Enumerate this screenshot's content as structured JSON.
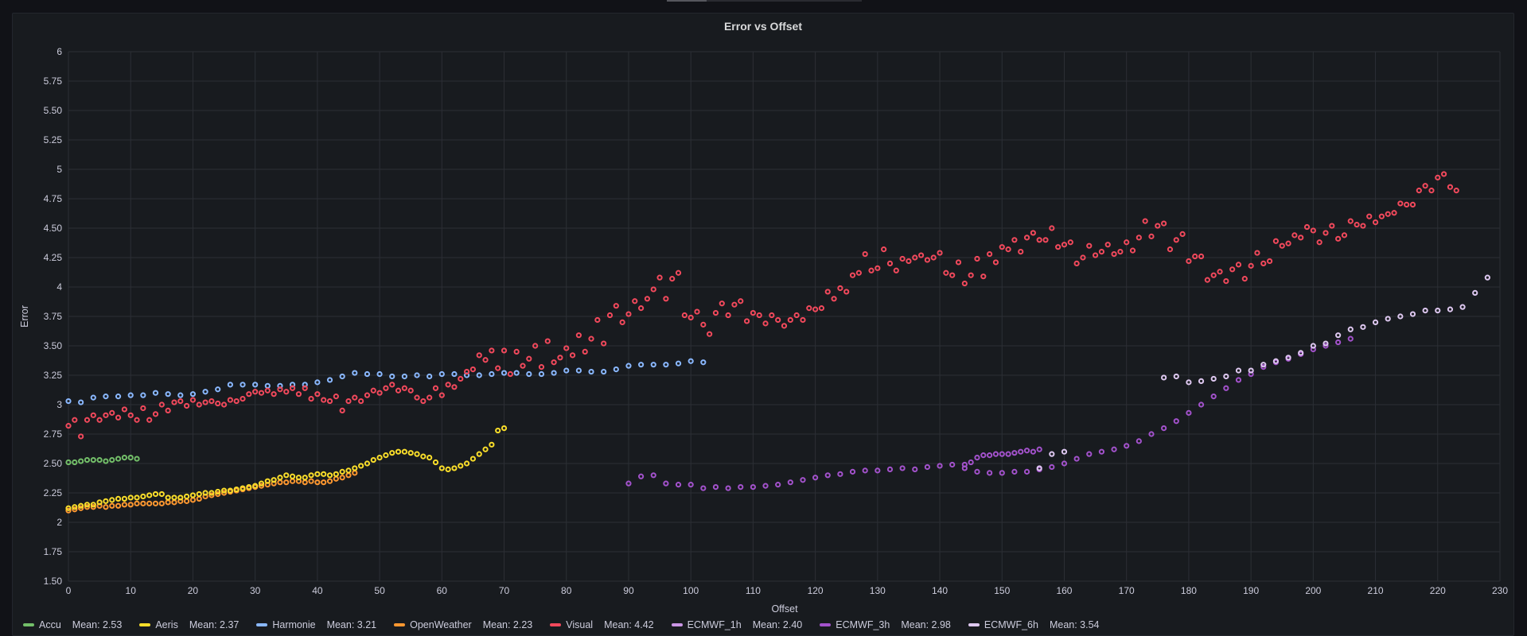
{
  "chart_data": {
    "type": "scatter",
    "title": "Error vs Offset",
    "xlabel": "Offset",
    "ylabel": "Error",
    "xlim": [
      0,
      230
    ],
    "ylim": [
      1.5,
      6
    ],
    "xticks": [
      "0",
      "10",
      "20",
      "30",
      "40",
      "50",
      "60",
      "70",
      "80",
      "90",
      "100",
      "110",
      "120",
      "130",
      "140",
      "150",
      "160",
      "170",
      "180",
      "190",
      "200",
      "210",
      "220",
      "230"
    ],
    "yticks": [
      "1.50",
      "1.75",
      "2",
      "2.25",
      "2.50",
      "2.75",
      "3",
      "3.25",
      "3.50",
      "3.75",
      "4",
      "4.25",
      "4.50",
      "4.75",
      "5",
      "5.25",
      "5.50",
      "5.75",
      "6"
    ],
    "grid": true,
    "legend": "bottom",
    "series": [
      {
        "name": "Accu",
        "mean_label": "Mean: 2.53",
        "color": "#73bf69",
        "x_start": 0,
        "values": [
          2.51,
          2.51,
          2.52,
          2.53,
          2.53,
          2.53,
          2.52,
          2.53,
          2.54,
          2.55,
          2.55,
          2.54
        ]
      },
      {
        "name": "Aeris",
        "mean_label": "Mean: 2.37",
        "color": "#fade2a",
        "x_start": 0,
        "values": [
          2.12,
          2.13,
          2.14,
          2.15,
          2.15,
          2.17,
          2.18,
          2.19,
          2.2,
          2.2,
          2.21,
          2.21,
          2.22,
          2.23,
          2.24,
          2.24,
          2.21,
          2.21,
          2.21,
          2.22,
          2.23,
          2.24,
          2.25,
          2.25,
          2.26,
          2.27,
          2.27,
          2.28,
          2.29,
          2.3,
          2.31,
          2.33,
          2.35,
          2.36,
          2.38,
          2.4,
          2.39,
          2.38,
          2.38,
          2.4,
          2.41,
          2.41,
          2.4,
          2.41,
          2.43,
          2.44,
          2.46,
          2.48,
          2.5,
          2.53,
          2.55,
          2.57,
          2.59,
          2.6,
          2.6,
          2.59,
          2.58,
          2.56,
          2.55,
          2.51,
          2.46,
          2.45,
          2.46,
          2.48,
          2.5,
          2.54,
          2.58,
          2.62,
          2.66,
          2.78,
          2.8
        ]
      },
      {
        "name": "Harmonie",
        "mean_label": "Mean: 3.21",
        "color": "#8ab8ff",
        "x_start": 0,
        "values": [
          3.03,
          null,
          3.02,
          null,
          3.06,
          null,
          3.07,
          null,
          3.07,
          null,
          3.08,
          null,
          3.08,
          null,
          3.1,
          null,
          3.09,
          null,
          3.08,
          null,
          3.09,
          null,
          3.11,
          null,
          3.13,
          null,
          3.17,
          null,
          3.17,
          null,
          3.17,
          null,
          3.16,
          null,
          3.16,
          null,
          3.17,
          null,
          3.17,
          null,
          3.19,
          null,
          3.21,
          null,
          3.24,
          null,
          3.27,
          null,
          3.26,
          null,
          3.26,
          null,
          3.24,
          null,
          3.24,
          null,
          3.25,
          null,
          3.24,
          null,
          3.26,
          null,
          3.26,
          null,
          3.25,
          null,
          3.25,
          null,
          3.26,
          null,
          3.27,
          null,
          3.27,
          null,
          3.26,
          null,
          3.26,
          null,
          3.27,
          null,
          3.29,
          null,
          3.29,
          null,
          3.28,
          null,
          3.28,
          null,
          3.3,
          null,
          3.33,
          null,
          3.34,
          null,
          3.34,
          null,
          3.34,
          null,
          3.35,
          null,
          3.37,
          null,
          3.36
        ]
      },
      {
        "name": "OpenWeather",
        "mean_label": "Mean: 2.23",
        "color": "#ff9830",
        "x_start": 0,
        "values": [
          2.1,
          2.11,
          2.12,
          2.13,
          2.13,
          2.14,
          2.13,
          2.14,
          2.14,
          2.15,
          2.15,
          2.16,
          2.16,
          2.16,
          2.16,
          2.16,
          2.17,
          2.17,
          2.18,
          2.18,
          2.19,
          2.2,
          2.22,
          2.23,
          2.24,
          2.25,
          2.26,
          2.27,
          2.28,
          2.29,
          2.3,
          2.31,
          2.32,
          2.33,
          2.34,
          2.34,
          2.35,
          2.35,
          2.34,
          2.35,
          2.34,
          2.34,
          2.35,
          2.37,
          2.38,
          2.4,
          2.42
        ]
      },
      {
        "name": "Visual",
        "mean_label": "Mean: 4.42",
        "color": "#f2495c",
        "x_start": 0,
        "values": [
          2.82,
          2.87,
          2.73,
          2.87,
          2.91,
          2.87,
          2.91,
          2.93,
          2.89,
          2.96,
          2.91,
          2.87,
          2.97,
          2.87,
          2.92,
          3.0,
          2.95,
          3.02,
          3.03,
          2.99,
          3.04,
          3.0,
          3.02,
          3.03,
          3.01,
          3.0,
          3.04,
          3.03,
          3.05,
          3.09,
          3.11,
          3.1,
          3.12,
          3.09,
          3.13,
          3.11,
          3.14,
          3.09,
          3.14,
          3.05,
          3.09,
          3.04,
          3.03,
          3.07,
          2.95,
          3.03,
          3.06,
          3.03,
          3.08,
          3.12,
          3.1,
          3.14,
          3.17,
          3.12,
          3.14,
          3.12,
          3.06,
          3.03,
          3.06,
          3.14,
          3.08,
          3.17,
          3.15,
          3.22,
          3.28,
          3.3,
          3.42,
          3.38,
          3.46,
          3.31,
          3.46,
          3.26,
          3.45,
          3.33,
          3.39,
          3.5,
          3.32,
          3.54,
          3.36,
          3.4,
          3.48,
          3.42,
          3.59,
          3.45,
          3.56,
          3.72,
          3.52,
          3.76,
          3.84,
          3.7,
          3.77,
          3.88,
          3.82,
          3.9,
          3.98,
          4.08,
          3.9,
          4.07,
          4.12,
          3.76,
          3.74,
          3.79,
          3.68,
          3.6,
          3.78,
          3.86,
          3.76,
          3.85,
          3.88,
          3.71,
          3.78,
          3.76,
          3.69,
          3.76,
          3.72,
          3.67,
          3.72,
          3.76,
          3.72,
          3.82,
          3.81,
          3.82,
          3.96,
          3.9,
          3.99,
          3.96,
          4.1,
          4.12,
          4.28,
          4.14,
          4.16,
          4.32,
          4.2,
          4.14,
          4.24,
          4.22,
          4.25,
          4.27,
          4.23,
          4.25,
          4.29,
          4.12,
          4.1,
          4.21,
          4.03,
          4.1,
          4.24,
          4.09,
          4.28,
          4.21,
          4.34,
          4.32,
          4.4,
          4.3,
          4.42,
          4.46,
          4.4,
          4.4,
          4.5,
          4.34,
          4.36,
          4.38,
          4.2,
          4.25,
          4.35,
          4.27,
          4.3,
          4.36,
          4.28,
          4.3,
          4.38,
          4.31,
          4.42,
          4.56,
          4.43,
          4.52,
          4.54,
          4.32,
          4.4,
          4.45,
          4.22,
          4.26,
          4.26,
          4.06,
          4.1,
          4.13,
          4.05,
          4.15,
          4.19,
          4.07,
          4.18,
          4.29,
          4.2,
          4.22,
          4.39,
          4.35,
          4.37,
          4.44,
          4.42,
          4.51,
          4.48,
          4.38,
          4.46,
          4.52,
          4.41,
          4.44,
          4.56,
          4.53,
          4.52,
          4.6,
          4.55,
          4.6,
          4.62,
          4.63,
          4.71,
          4.7,
          4.7,
          4.82,
          4.86,
          4.82,
          4.93,
          4.96,
          4.85,
          4.82
        ]
      },
      {
        "name": "ECMWF_1h",
        "mean_label": "Mean: 2.40",
        "color": "#ca95e5",
        "x_start": 90,
        "x_step": 1,
        "values": []
      },
      {
        "name": "ECMWF_3h",
        "mean_label": "Mean: 2.98",
        "color": "#a352cc",
        "x_start": 90,
        "x_step": 2,
        "values": [
          2.33,
          2.39,
          2.4,
          2.33,
          2.32,
          2.32,
          2.29,
          2.3,
          2.29,
          2.3,
          2.3,
          2.31,
          2.32,
          2.34,
          2.36,
          2.38,
          2.4,
          2.41,
          2.43,
          2.44,
          2.44,
          2.45,
          2.46,
          2.45,
          2.47,
          2.48,
          2.49,
          2.46,
          2.43,
          2.42,
          2.42,
          2.43,
          2.43,
          2.45,
          2.47,
          2.5,
          2.54,
          2.58,
          2.6,
          2.62,
          2.65,
          2.69,
          2.75,
          2.8,
          2.86,
          2.93,
          3.0,
          3.07,
          3.14,
          3.21,
          3.26,
          3.32,
          3.36,
          3.39,
          3.43,
          3.47,
          3.5,
          3.53,
          3.56
        ]
      },
      {
        "name": "ECMWF_6h",
        "mean_label": "Mean: 3.54",
        "color": "#dec8f0",
        "x_start": 0,
        "values": []
      }
    ],
    "extra_series_points": {
      "ECMWF_3h_extra": [
        [
          144,
          2.49
        ],
        [
          145,
          2.51
        ],
        [
          146,
          2.55
        ],
        [
          147,
          2.57
        ],
        [
          148,
          2.57
        ],
        [
          149,
          2.58
        ],
        [
          150,
          2.58
        ],
        [
          151,
          2.58
        ],
        [
          152,
          2.59
        ],
        [
          153,
          2.6
        ],
        [
          154,
          2.61
        ],
        [
          155,
          2.6
        ],
        [
          156,
          2.62
        ]
      ],
      "ECMWF_6h_points": [
        [
          156,
          2.46
        ],
        [
          158,
          2.58
        ],
        [
          160,
          2.6
        ],
        [
          176,
          3.23
        ],
        [
          178,
          3.24
        ],
        [
          180,
          3.19
        ],
        [
          182,
          3.2
        ],
        [
          184,
          3.22
        ],
        [
          186,
          3.24
        ],
        [
          188,
          3.29
        ],
        [
          190,
          3.29
        ],
        [
          192,
          3.34
        ],
        [
          194,
          3.37
        ],
        [
          196,
          3.4
        ],
        [
          198,
          3.44
        ],
        [
          200,
          3.5
        ],
        [
          202,
          3.52
        ],
        [
          204,
          3.59
        ],
        [
          206,
          3.64
        ],
        [
          208,
          3.66
        ],
        [
          210,
          3.7
        ],
        [
          212,
          3.73
        ],
        [
          214,
          3.75
        ],
        [
          216,
          3.77
        ],
        [
          218,
          3.8
        ],
        [
          220,
          3.8
        ],
        [
          222,
          3.81
        ],
        [
          224,
          3.83
        ],
        [
          226,
          3.95
        ],
        [
          228,
          4.08
        ]
      ]
    }
  }
}
